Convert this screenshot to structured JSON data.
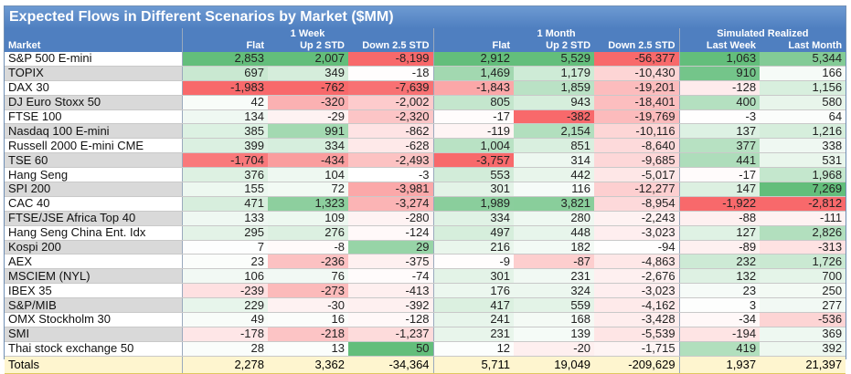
{
  "colors": {
    "header_bg": "#4f7fc0",
    "totals_bg": "#fef5cf",
    "positive_strong": "#63be7b",
    "negative_strong": "#f8696b",
    "neutral": "#ffffff"
  },
  "chart_data": {
    "type": "table",
    "title": "Expected Flows in Different Scenarios by Market ($MM)",
    "column_groups": [
      {
        "label": "",
        "span": 1
      },
      {
        "label": "1 Week",
        "span": 3
      },
      {
        "label": "1 Month",
        "span": 3
      },
      {
        "label": "Simulated Realized",
        "span": 2
      }
    ],
    "columns": [
      "Market",
      "Flat",
      "Up 2 STD",
      "Down 2.5 STD",
      "Flat",
      "Up 2 STD",
      "Down 2.5 STD",
      "Last Week",
      "Last Month"
    ],
    "rows": [
      {
        "market": "S&P 500 E-mini",
        "values": [
          2853,
          2007,
          -8199,
          2912,
          5529,
          -56377,
          1063,
          5344
        ]
      },
      {
        "market": "TOPIX",
        "values": [
          697,
          349,
          -18,
          1469,
          1179,
          -10430,
          910,
          166
        ]
      },
      {
        "market": "DAX 30",
        "values": [
          -1983,
          -762,
          -7639,
          -1843,
          1859,
          -19201,
          -128,
          1156
        ]
      },
      {
        "market": "DJ Euro Stoxx 50",
        "values": [
          42,
          -320,
          -2002,
          805,
          943,
          -18401,
          400,
          580
        ]
      },
      {
        "market": "FTSE 100",
        "values": [
          134,
          -29,
          -2320,
          -17,
          -382,
          -19769,
          -3,
          64
        ]
      },
      {
        "market": "Nasdaq 100 E-mini",
        "values": [
          385,
          991,
          -862,
          -119,
          2154,
          -10116,
          137,
          1216
        ]
      },
      {
        "market": "Russell 2000 E-mini CME",
        "values": [
          399,
          334,
          -628,
          1004,
          851,
          -8640,
          377,
          338
        ]
      },
      {
        "market": "TSE 60",
        "values": [
          -1704,
          -434,
          -2493,
          -3757,
          314,
          -9685,
          441,
          531
        ]
      },
      {
        "market": "Hang Seng",
        "values": [
          376,
          104,
          -3,
          553,
          442,
          -5017,
          -17,
          1968
        ]
      },
      {
        "market": "SPI 200",
        "values": [
          155,
          72,
          -3981,
          301,
          116,
          -12277,
          147,
          7269
        ]
      },
      {
        "market": "CAC 40",
        "values": [
          471,
          1323,
          -3274,
          1989,
          3821,
          -8954,
          -1922,
          -2812
        ]
      },
      {
        "market": "FTSE/JSE Africa Top 40",
        "values": [
          133,
          109,
          -280,
          334,
          280,
          -2243,
          -88,
          -111
        ]
      },
      {
        "market": "Hang Seng China Ent. Idx",
        "values": [
          295,
          276,
          -124,
          497,
          448,
          -3023,
          127,
          2826
        ]
      },
      {
        "market": "Kospi 200",
        "values": [
          7,
          -8,
          29,
          216,
          182,
          -94,
          -89,
          -313
        ]
      },
      {
        "market": "AEX",
        "values": [
          23,
          -236,
          -375,
          -9,
          -87,
          -4863,
          232,
          1726
        ]
      },
      {
        "market": "MSCIEM (NYL)",
        "values": [
          106,
          76,
          -74,
          301,
          231,
          -2676,
          132,
          700
        ]
      },
      {
        "market": "IBEX 35",
        "values": [
          -239,
          -273,
          -413,
          176,
          324,
          -3023,
          23,
          250
        ]
      },
      {
        "market": "S&P/MIB",
        "values": [
          229,
          -30,
          -392,
          417,
          559,
          -4162,
          3,
          277
        ]
      },
      {
        "market": "OMX Stockholm 30",
        "values": [
          49,
          16,
          -128,
          241,
          168,
          -3428,
          -34,
          -536
        ]
      },
      {
        "market": "SMI",
        "values": [
          -178,
          -218,
          -1237,
          231,
          139,
          -5539,
          -194,
          369
        ]
      },
      {
        "market": "Thai stock exchange 50",
        "values": [
          28,
          13,
          50,
          12,
          -20,
          -1715,
          419,
          392
        ]
      }
    ],
    "totals": {
      "label": "Totals",
      "values": [
        2278,
        3362,
        -34364,
        5711,
        19049,
        -209629,
        1937,
        21397
      ]
    }
  }
}
